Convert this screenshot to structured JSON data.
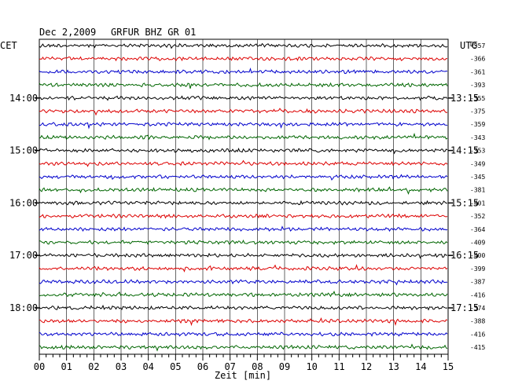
{
  "header": {
    "date": "Dec 2,2009",
    "station": "GRFUR BHZ GR 01",
    "left_zone": "CET",
    "right_zone": "UTC",
    "dc_label": "DC"
  },
  "chart_data": {
    "type": "line",
    "title": "Dec 2,2009 GRFUR BHZ GR 01",
    "xlabel": "Zeit [min]",
    "xlim": [
      0,
      15
    ],
    "x_ticks": [
      "00",
      "01",
      "02",
      "03",
      "04",
      "05",
      "06",
      "07",
      "08",
      "09",
      "10",
      "11",
      "12",
      "13",
      "14",
      "15"
    ],
    "grid": true,
    "trace_colors": [
      "#000000",
      "#dd0000",
      "#0000cc",
      "#006600"
    ],
    "left_time_labels": [
      {
        "trace": 4,
        "label": "14:00"
      },
      {
        "trace": 8,
        "label": "15:00"
      },
      {
        "trace": 12,
        "label": "16:00"
      },
      {
        "trace": 16,
        "label": "17:00"
      },
      {
        "trace": 20,
        "label": "18:00"
      }
    ],
    "right_time_labels": [
      {
        "trace": 4,
        "label": "13:15"
      },
      {
        "trace": 8,
        "label": "14:15"
      },
      {
        "trace": 12,
        "label": "15:15"
      },
      {
        "trace": 16,
        "label": "16:15"
      },
      {
        "trace": 20,
        "label": "17:15"
      }
    ],
    "dc_offsets": [
      -357,
      -366,
      -361,
      -393,
      -355,
      -375,
      -359,
      -343,
      -353,
      -349,
      -345,
      -381,
      -401,
      -352,
      -364,
      -409,
      -400,
      -399,
      -387,
      -416,
      -374,
      -388,
      -416,
      -415
    ]
  }
}
